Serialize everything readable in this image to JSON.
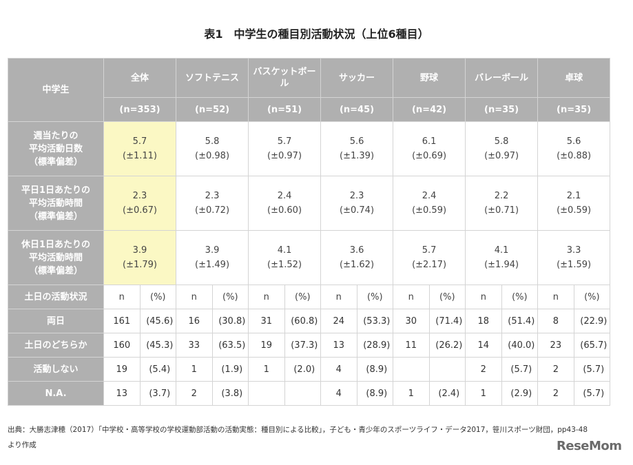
{
  "title": "表1　中学生の種目別活動状況（上位6種目）",
  "corner_label": "中学生",
  "sports": [
    {
      "name": "全体",
      "n": "(n=353)"
    },
    {
      "name": "ソフトテニス",
      "n": "(n=52)"
    },
    {
      "name": "バスケットボール",
      "n": "(n=51)"
    },
    {
      "name": "サッカー",
      "n": "(n=45)"
    },
    {
      "name": "野球",
      "n": "(n=42)"
    },
    {
      "name": "バレーボール",
      "n": "(n=35)"
    },
    {
      "name": "卓球",
      "n": "(n=35)"
    }
  ],
  "stat_rows": [
    {
      "label": "週当たりの\n平均活動日数\n（標準偏差）",
      "values": [
        [
          "5.7",
          "(±1.11)"
        ],
        [
          "5.8",
          "(±0.98)"
        ],
        [
          "5.7",
          "(±0.97)"
        ],
        [
          "5.6",
          "(±1.39)"
        ],
        [
          "6.1",
          "(±0.69)"
        ],
        [
          "5.8",
          "(±0.97)"
        ],
        [
          "5.6",
          "(±0.88)"
        ]
      ]
    },
    {
      "label": "平日1日あたりの\n平均活動時間\n（標準偏差）",
      "values": [
        [
          "2.3",
          "(±0.67)"
        ],
        [
          "2.3",
          "(±0.72)"
        ],
        [
          "2.4",
          "(±0.60)"
        ],
        [
          "2.3",
          "(±0.74)"
        ],
        [
          "2.4",
          "(±0.59)"
        ],
        [
          "2.2",
          "(±0.71)"
        ],
        [
          "2.1",
          "(±0.59)"
        ]
      ]
    },
    {
      "label": "休日1日あたりの\n平均活動時間\n（標準偏差）",
      "values": [
        [
          "3.9",
          "(±1.79)"
        ],
        [
          "3.9",
          "(±1.49)"
        ],
        [
          "4.1",
          "(±1.52)"
        ],
        [
          "3.6",
          "(±1.62)"
        ],
        [
          "5.7",
          "(±2.17)"
        ],
        [
          "4.1",
          "(±1.94)"
        ],
        [
          "3.3",
          "(±1.59)"
        ]
      ]
    }
  ],
  "weekend_header": {
    "label": "土日の活動状況",
    "n": "n",
    "pct": "(%)"
  },
  "count_rows": [
    {
      "label": "両日",
      "values": [
        [
          "161",
          "(45.6)"
        ],
        [
          "16",
          "(30.8)"
        ],
        [
          "31",
          "(60.8)"
        ],
        [
          "24",
          "(53.3)"
        ],
        [
          "30",
          "(71.4)"
        ],
        [
          "18",
          "(51.4)"
        ],
        [
          "8",
          "(22.9)"
        ]
      ]
    },
    {
      "label": "土日のどちらか",
      "values": [
        [
          "160",
          "(45.3)"
        ],
        [
          "33",
          "(63.5)"
        ],
        [
          "19",
          "(37.3)"
        ],
        [
          "13",
          "(28.9)"
        ],
        [
          "11",
          "(26.2)"
        ],
        [
          "14",
          "(40.0)"
        ],
        [
          "23",
          "(65.7)"
        ]
      ]
    },
    {
      "label": "活動しない",
      "values": [
        [
          "19",
          "(5.4)"
        ],
        [
          "1",
          "(1.9)"
        ],
        [
          "1",
          "(2.0)"
        ],
        [
          "4",
          "(8.9)"
        ],
        [
          "",
          ""
        ],
        [
          "2",
          "(5.7)"
        ],
        [
          "2",
          "(5.7)"
        ]
      ]
    },
    {
      "label": "N.A.",
      "values": [
        [
          "13",
          "(3.7)"
        ],
        [
          "2",
          "(3.8)"
        ],
        [
          "",
          ""
        ],
        [
          "4",
          "(8.9)"
        ],
        [
          "1",
          "(2.4)"
        ],
        [
          "1",
          "(2.9)"
        ],
        [
          "2",
          "(5.7)"
        ]
      ]
    }
  ],
  "source_line1": "出典：大勝志津穂（2017）「中学校・高等学校の学校運動部活動の活動実態：種目別による比較」，子ども・青少年のスポーツライフ・データ2017，笹川スポーツ財団，pp43-48",
  "source_line2": "より作成",
  "logo_text": "ReseMom"
}
